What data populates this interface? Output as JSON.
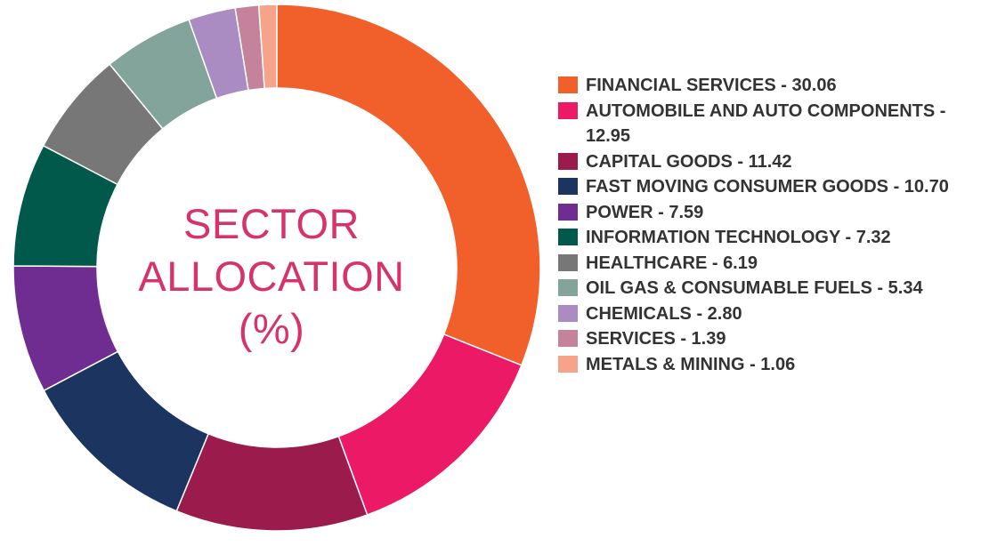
{
  "chart_data": {
    "type": "pie",
    "title_lines": [
      "SECTOR",
      "ALLOCATION",
      "(%)"
    ],
    "categories": [
      "FINANCIAL SERVICES",
      "AUTOMOBILE AND AUTO COMPONENTS",
      "CAPITAL GOODS",
      "FAST MOVING CONSUMER GOODS",
      "POWER",
      "INFORMATION TECHNOLOGY",
      "HEALTHCARE",
      "OIL GAS & CONSUMABLE FUELS",
      "CHEMICALS",
      "SERVICES",
      "METALS & MINING"
    ],
    "values": [
      30.06,
      12.95,
      11.42,
      10.7,
      7.59,
      7.32,
      6.19,
      5.34,
      2.8,
      1.39,
      1.06
    ],
    "colors": [
      "#f15f2a",
      "#ec1a66",
      "#9b1b4c",
      "#1c3560",
      "#6f2c91",
      "#00594a",
      "#777777",
      "#82a49b",
      "#aa8cc2",
      "#c4829b",
      "#f6a38a"
    ],
    "legend_labels": [
      "FINANCIAL SERVICES - 30.06",
      "AUTOMOBILE AND AUTO COMPONENTS - 12.95",
      "CAPITAL GOODS - 11.42",
      "FAST MOVING CONSUMER GOODS - 10.70",
      "POWER - 7.59",
      "INFORMATION TECHNOLOGY - 7.32",
      "HEALTHCARE - 6.19",
      "OIL GAS & CONSUMABLE FUELS - 5.34",
      "CHEMICALS - 2.80",
      "SERVICES - 1.39",
      "METALS & MINING - 1.06"
    ],
    "donut": true,
    "legend_position": "right"
  }
}
